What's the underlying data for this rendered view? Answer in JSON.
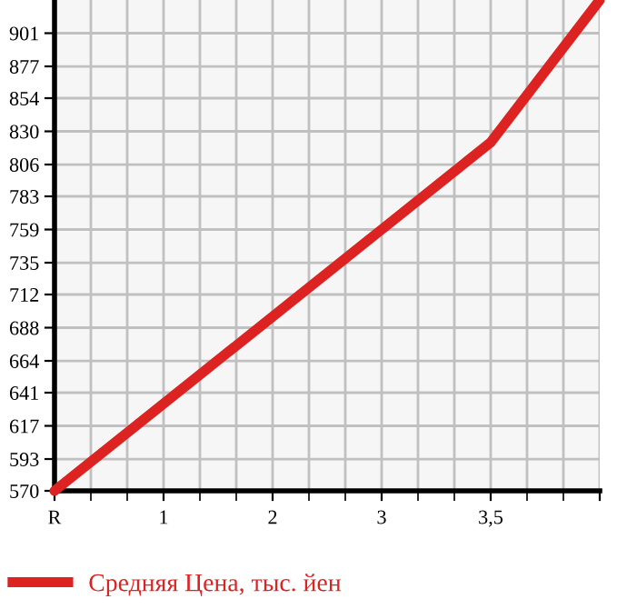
{
  "chart_data": {
    "type": "line",
    "categories": [
      "R",
      "1",
      "2",
      "3",
      "3,5",
      null
    ],
    "series": [
      {
        "name": "Средняя Цена, тыс. йен",
        "color": "#dd2222",
        "values": [
          570,
          633,
          696,
          759,
          822,
          925
        ]
      }
    ],
    "ylim": [
      570,
      925
    ],
    "yticks": [
      570,
      593,
      617,
      641,
      664,
      688,
      712,
      735,
      759,
      783,
      806,
      830,
      854,
      877,
      901
    ],
    "grid": true,
    "legend": "bottom",
    "marker": "none",
    "line_style": "solid"
  }
}
